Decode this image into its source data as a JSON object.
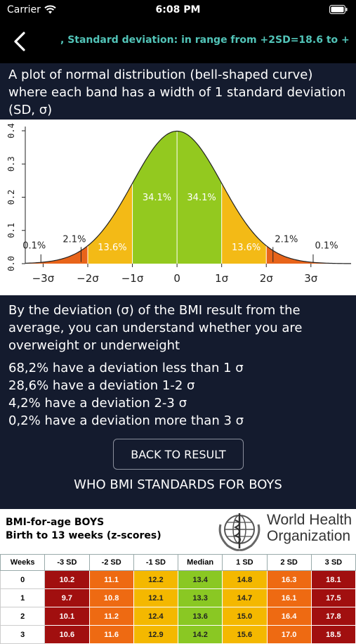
{
  "status_bar": {
    "carrier": "Carrier",
    "time": "6:08 PM"
  },
  "nav": {
    "title": ", Standard deviation: in range from +2SD=18.6 to +"
  },
  "intro": "A plot of normal distribution (bell-shaped curve) where each band has a width of 1 standard deviation (SD, σ)",
  "chart_data": {
    "type": "area",
    "title": "",
    "xlabel": "",
    "ylabel": "",
    "ylim": [
      0,
      0.4
    ],
    "xlim": [
      -3.4,
      3.9
    ],
    "grid": false,
    "y_ticks": [
      "0.0",
      "0.1",
      "0.2",
      "0.3",
      "0.4"
    ],
    "y_tick_values": [
      0,
      0.1,
      0.2,
      0.3,
      0.4
    ],
    "x_ticks": [
      "−3σ",
      "−2σ",
      "−1σ",
      "0",
      "1σ",
      "2σ",
      "3σ"
    ],
    "x_tick_values": [
      -3,
      -2,
      -1,
      0,
      1,
      2,
      3
    ],
    "bands": [
      {
        "from": -3.4,
        "to": -2,
        "color": "#e8641a"
      },
      {
        "from": -2,
        "to": -1,
        "color": "#f3ba16"
      },
      {
        "from": -1,
        "to": 1,
        "color": "#93c91f"
      },
      {
        "from": 1,
        "to": 2,
        "color": "#f3ba16"
      },
      {
        "from": 2,
        "to": 3.9,
        "color": "#e8641a"
      }
    ],
    "band_labels": [
      {
        "text": "0.1%",
        "x": -3.2,
        "y": 0.045,
        "inside": false
      },
      {
        "text": "2.1%",
        "x": -2.3,
        "y": 0.065,
        "inside": false
      },
      {
        "text": "13.6%",
        "x": -1.45,
        "y": 0.04,
        "inside": true
      },
      {
        "text": "34.1%",
        "x": -0.45,
        "y": 0.19,
        "inside": true
      },
      {
        "text": "34.1%",
        "x": 0.55,
        "y": 0.19,
        "inside": true
      },
      {
        "text": "13.6%",
        "x": 1.55,
        "y": 0.04,
        "inside": true
      },
      {
        "text": "2.1%",
        "x": 2.45,
        "y": 0.065,
        "inside": false
      },
      {
        "text": "0.1%",
        "x": 3.35,
        "y": 0.045,
        "inside": false
      }
    ]
  },
  "description": "By the deviation (σ) of the BMI result from the average, you can understand whether you are overweight or underweight",
  "stats": [
    "68,2% have a deviation less than 1 σ",
    "28,6% have a deviation 1-2 σ",
    "4,2% have a deviation 2-3 σ",
    "0,2% have a deviation more than 3 σ"
  ],
  "back_button": "BACK TO RESULT",
  "who_title": "WHO BMI STANDARDS FOR BOYS",
  "table": {
    "title_line1": "BMI-for-age BOYS",
    "title_line2": "Birth to 13 weeks (z-scores)",
    "org_line1": "World Health",
    "org_line2": "Organization",
    "headers": [
      "Weeks",
      "-3 SD",
      "-2 SD",
      "-1 SD",
      "Median",
      "1 SD",
      "2 SD",
      "3 SD"
    ],
    "rows": [
      [
        "0",
        "10.2",
        "11.1",
        "12.2",
        "13.4",
        "14.8",
        "16.3",
        "18.1"
      ],
      [
        "1",
        "9.7",
        "10.8",
        "12.1",
        "13.3",
        "14.7",
        "16.1",
        "17.5"
      ],
      [
        "2",
        "10.1",
        "11.2",
        "12.4",
        "13.6",
        "15.0",
        "16.4",
        "17.8"
      ],
      [
        "3",
        "10.6",
        "11.6",
        "12.9",
        "14.2",
        "15.6",
        "17.0",
        "18.5"
      ]
    ]
  }
}
